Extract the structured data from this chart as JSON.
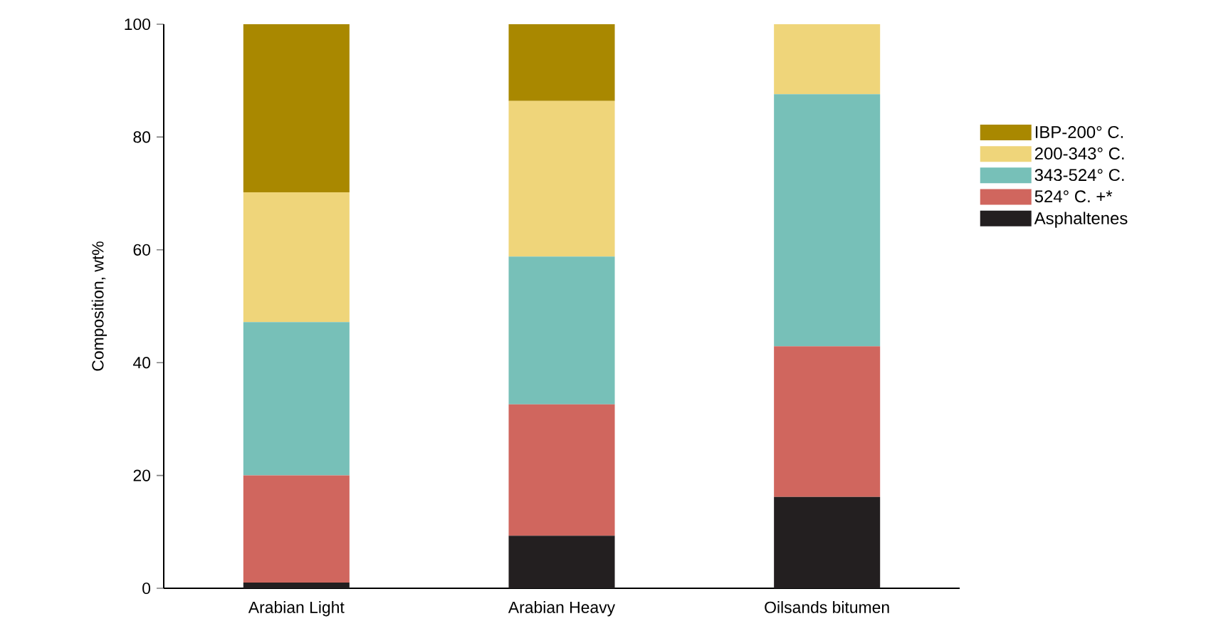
{
  "chart_data": {
    "type": "bar",
    "stacked": true,
    "ylabel": "Composition, wt%",
    "categories": [
      "Arabian Light",
      "Arabian Heavy",
      "Oilsands bitumen"
    ],
    "series": [
      {
        "name": "Asphaltenes",
        "color": "#231f20",
        "values": [
          1,
          9.3,
          16.2
        ]
      },
      {
        "name": "524° C. +*",
        "color": "#d0665e",
        "values": [
          19,
          23.3,
          26.7
        ]
      },
      {
        "name": "343-524° C.",
        "color": "#77c0b8",
        "values": [
          27.2,
          26.2,
          44.7
        ]
      },
      {
        "name": "200-343° C.",
        "color": "#efd57a",
        "values": [
          23,
          27.6,
          12.4
        ]
      },
      {
        "name": "IBP-200° C.",
        "color": "#a98800",
        "values": [
          29.8,
          13.6,
          0
        ]
      }
    ],
    "ylim": [
      0,
      100
    ],
    "yticks": [
      0,
      20,
      40,
      60,
      80,
      100
    ],
    "legend": "right",
    "grid": false
  }
}
